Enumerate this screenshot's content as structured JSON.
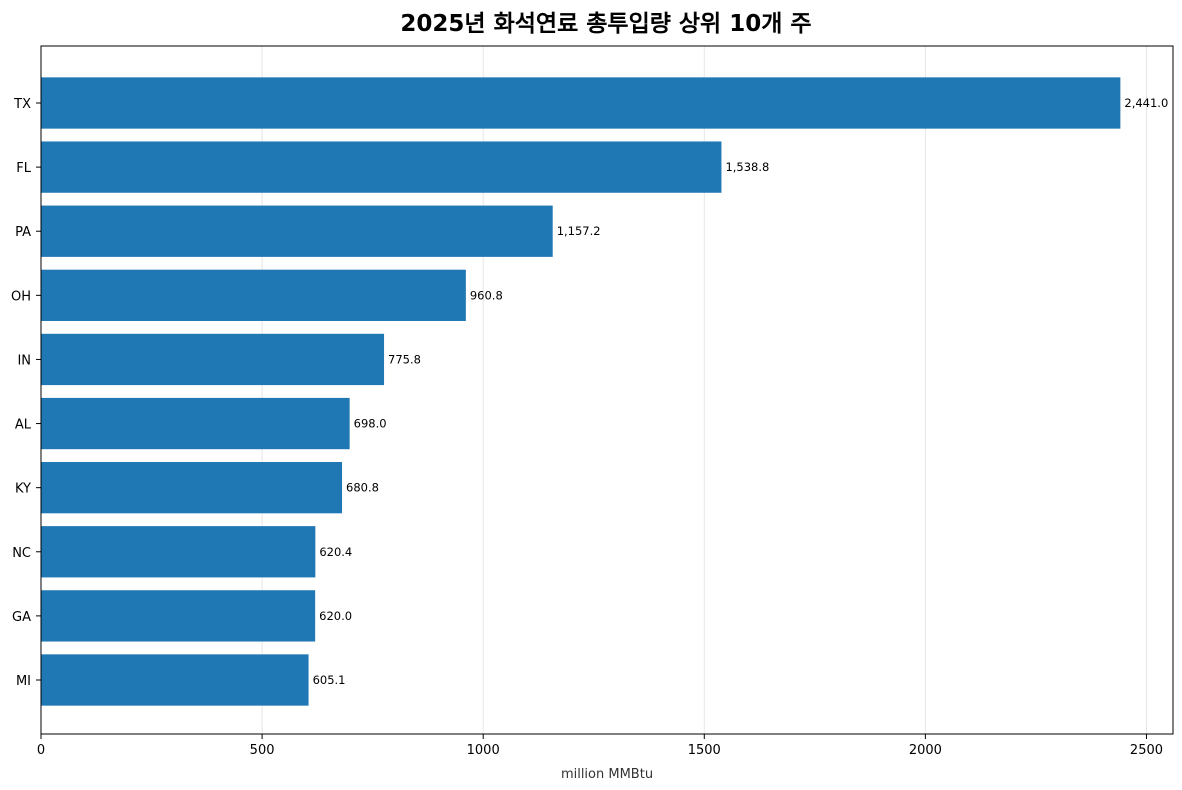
{
  "chart_data": {
    "type": "bar",
    "orientation": "horizontal",
    "title": "2025년 화석연료 총투입량 상위 10개 주",
    "xlabel": "million MMBtu",
    "ylabel": "",
    "xlim": [
      0,
      2560
    ],
    "xticks": [
      0,
      500,
      1000,
      1500,
      2000,
      2500
    ],
    "grid": "x",
    "bar_color": "#1f77b4",
    "categories": [
      "TX",
      "FL",
      "PA",
      "OH",
      "IN",
      "AL",
      "KY",
      "NC",
      "GA",
      "MI"
    ],
    "values": [
      2441.0,
      1538.8,
      1157.2,
      960.8,
      775.8,
      698.0,
      680.8,
      620.4,
      620.0,
      605.1
    ],
    "value_labels": [
      "2,441.0",
      "1,538.8",
      "1,157.2",
      "960.8",
      "775.8",
      "698.0",
      "680.8",
      "620.4",
      "620.0",
      "605.1"
    ]
  }
}
